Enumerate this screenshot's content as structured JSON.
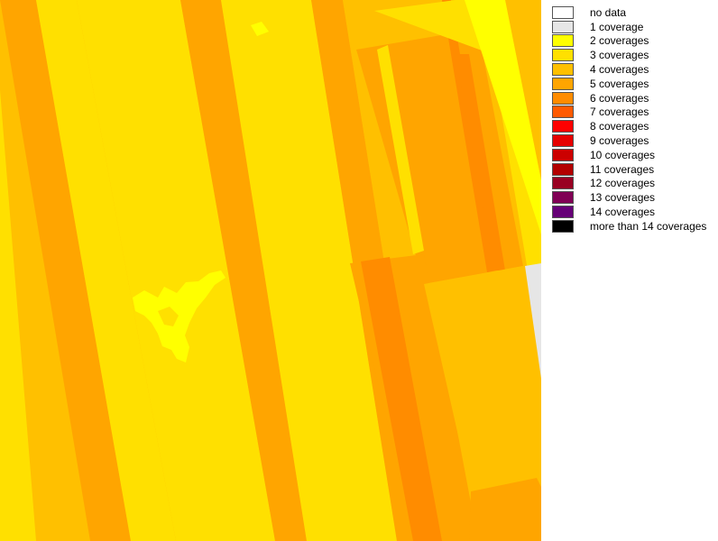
{
  "map": {
    "legend": [
      {
        "label": "no data",
        "color": "#ffffff"
      },
      {
        "label": "1 coverage",
        "color": "#e6e6e6"
      },
      {
        "label": "2 coverages",
        "color": "#ffff00"
      },
      {
        "label": "3 coverages",
        "color": "#ffe000"
      },
      {
        "label": "4 coverages",
        "color": "#ffc000"
      },
      {
        "label": "5 coverages",
        "color": "#ffa500"
      },
      {
        "label": "6 coverages",
        "color": "#ff8c00"
      },
      {
        "label": "7 coverages",
        "color": "#ff5a00"
      },
      {
        "label": "8 coverages",
        "color": "#ff0000"
      },
      {
        "label": "9 coverages",
        "color": "#e60000"
      },
      {
        "label": "10 coverages",
        "color": "#cc0000"
      },
      {
        "label": "11 coverages",
        "color": "#b30000"
      },
      {
        "label": "12 coverages",
        "color": "#990022"
      },
      {
        "label": "13 coverages",
        "color": "#800055"
      },
      {
        "label": "14 coverages",
        "color": "#660077"
      },
      {
        "label": "more than 14 coverages",
        "color": "#000000"
      }
    ]
  }
}
